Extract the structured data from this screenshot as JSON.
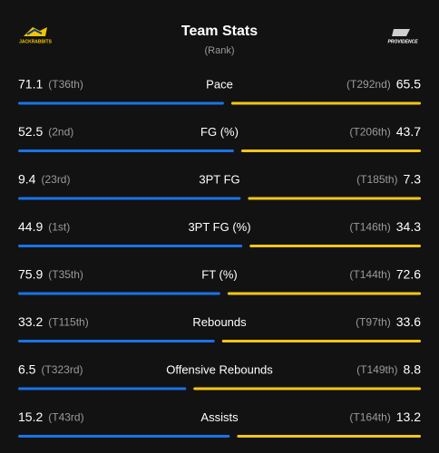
{
  "header": {
    "title": "Team Stats",
    "subtitle": "(Rank)",
    "left_logo_text": "JACKRABBITS",
    "right_logo_text": "PROVIDENCE"
  },
  "rows": [
    {
      "label": "Pace",
      "left": {
        "value": 71.1,
        "rank": "(T36th)"
      },
      "right": {
        "value": 65.5,
        "rank": "(T292nd)"
      }
    },
    {
      "label": "FG (%)",
      "left": {
        "value": 52.5,
        "rank": "(2nd)"
      },
      "right": {
        "value": 43.7,
        "rank": "(T206th)"
      }
    },
    {
      "label": "3PT FG",
      "left": {
        "value": 9.4,
        "rank": "(23rd)"
      },
      "right": {
        "value": 7.3,
        "rank": "(T185th)"
      }
    },
    {
      "label": "3PT FG (%)",
      "left": {
        "value": 44.9,
        "rank": "(1st)"
      },
      "right": {
        "value": 34.3,
        "rank": "(T146th)"
      }
    },
    {
      "label": "FT (%)",
      "left": {
        "value": 75.9,
        "rank": "(T35th)"
      },
      "right": {
        "value": 72.6,
        "rank": "(T144th)"
      }
    },
    {
      "label": "Rebounds",
      "left": {
        "value": 33.2,
        "rank": "(T115th)"
      },
      "right": {
        "value": 33.6,
        "rank": "(T97th)"
      }
    },
    {
      "label": "Offensive Rebounds",
      "left": {
        "value": 6.5,
        "rank": "(T323rd)"
      },
      "right": {
        "value": 8.8,
        "rank": "(T149th)"
      }
    },
    {
      "label": "Assists",
      "left": {
        "value": 15.2,
        "rank": "(T43rd)"
      },
      "right": {
        "value": 13.2,
        "rank": "(T164th)"
      }
    }
  ]
}
